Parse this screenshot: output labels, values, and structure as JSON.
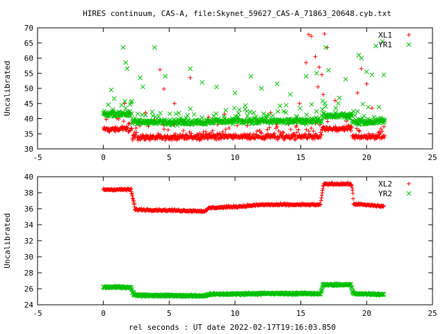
{
  "figure": {
    "title": "HIRES continuum, CAS-A, file:Skynet_59627_CAS-A_71863_20648.cyb.txt",
    "xlabel": "rel seconds : UT date 2022-02-17T19:16:03.850"
  },
  "chart_data": [
    {
      "type": "scatter",
      "ylabel": "Uncalibrated",
      "xlim": [
        -5,
        25
      ],
      "ylim": [
        30,
        70
      ],
      "xticks": [
        "-5",
        "0",
        "5",
        "10",
        "15",
        "20",
        "25"
      ],
      "yticks": [
        "30",
        "35",
        "40",
        "45",
        "50",
        "55",
        "60",
        "65",
        "70"
      ],
      "legend": "top-right",
      "series": [
        {
          "name": "XL1",
          "marker": "plus",
          "color": "#ff0000",
          "baseline_segments": [
            {
              "x0": 0.0,
              "x1": 2.2,
              "y": 36.5
            },
            {
              "x0": 2.2,
              "x1": 7.8,
              "y": 33.8
            },
            {
              "x0": 7.8,
              "x1": 16.6,
              "y": 34.0
            },
            {
              "x0": 16.6,
              "x1": 18.9,
              "y": 36.5
            },
            {
              "x0": 18.9,
              "x1": 21.4,
              "y": 34.0
            }
          ],
          "outliers": [
            [
              4.3,
              56.2
            ],
            [
              4.6,
              49.8
            ],
            [
              6.6,
              53.5
            ],
            [
              5.4,
              45.0
            ],
            [
              9.2,
              41.5
            ],
            [
              12.7,
              42.0
            ],
            [
              14.9,
              45.0
            ],
            [
              15.4,
              58.5
            ],
            [
              15.6,
              67.8
            ],
            [
              15.8,
              67.2
            ],
            [
              16.1,
              60.5
            ],
            [
              16.4,
              57.0
            ],
            [
              16.6,
              54.5
            ],
            [
              16.8,
              68.0
            ],
            [
              17.0,
              63.5
            ],
            [
              16.3,
              50.5
            ],
            [
              16.7,
              48.0
            ],
            [
              19.3,
              48.5
            ],
            [
              19.6,
              56.5
            ],
            [
              20.0,
              51.5
            ],
            [
              20.4,
              43.5
            ],
            [
              17.6,
              46.0
            ],
            [
              1.6,
              45.0
            ],
            [
              3.2,
              42.0
            ]
          ]
        },
        {
          "name": "YR1",
          "marker": "cross",
          "color": "#00c000",
          "baseline_segments": [
            {
              "x0": 0.0,
              "x1": 2.2,
              "y": 41.5
            },
            {
              "x0": 2.2,
              "x1": 7.8,
              "y": 38.8
            },
            {
              "x0": 7.8,
              "x1": 16.6,
              "y": 39.2
            },
            {
              "x0": 16.6,
              "x1": 18.9,
              "y": 40.8
            },
            {
              "x0": 18.9,
              "x1": 21.4,
              "y": 39.0
            }
          ],
          "outliers": [
            [
              1.5,
              63.5
            ],
            [
              1.7,
              58.5
            ],
            [
              1.8,
              56.5
            ],
            [
              3.9,
              63.5
            ],
            [
              2.8,
              53.5
            ],
            [
              4.7,
              54.0
            ],
            [
              6.6,
              56.5
            ],
            [
              7.5,
              52.0
            ],
            [
              11.2,
              54.0
            ],
            [
              12.0,
              50.0
            ],
            [
              13.2,
              51.5
            ],
            [
              15.4,
              54.0
            ],
            [
              16.2,
              55.0
            ],
            [
              16.9,
              63.5
            ],
            [
              17.1,
              56.0
            ],
            [
              18.4,
              53.0
            ],
            [
              19.4,
              61.0
            ],
            [
              19.6,
              60.0
            ],
            [
              20.0,
              55.5
            ],
            [
              20.4,
              54.5
            ],
            [
              20.7,
              64.0
            ],
            [
              21.2,
              65.5
            ],
            [
              21.3,
              54.5
            ],
            [
              0.6,
              49.5
            ],
            [
              3.0,
              50.5
            ],
            [
              8.6,
              50.5
            ],
            [
              10.0,
              48.5
            ],
            [
              14.2,
              48.0
            ]
          ]
        }
      ]
    },
    {
      "type": "scatter",
      "ylabel": "Uncalibrated",
      "xlim": [
        -5,
        25
      ],
      "ylim": [
        24,
        40
      ],
      "xticks": [
        "-5",
        "0",
        "5",
        "10",
        "15",
        "20",
        "25"
      ],
      "yticks": [
        "24",
        "26",
        "28",
        "30",
        "32",
        "34",
        "36",
        "38",
        "40"
      ],
      "legend": "top-right",
      "series": [
        {
          "name": "XL2",
          "marker": "plus",
          "color": "#ff0000",
          "points": [
            [
              0.0,
              38.4
            ],
            [
              2.1,
              38.4
            ],
            [
              2.15,
              38.0
            ],
            [
              2.2,
              37.6
            ],
            [
              2.25,
              37.2
            ],
            [
              2.3,
              36.9
            ],
            [
              2.35,
              36.5
            ],
            [
              2.4,
              35.9
            ],
            [
              7.8,
              35.7
            ],
            [
              8.0,
              36.1
            ],
            [
              10.5,
              36.3
            ],
            [
              12.0,
              36.5
            ],
            [
              14.0,
              36.5
            ],
            [
              16.5,
              36.5
            ],
            [
              16.6,
              37.7
            ],
            [
              16.65,
              38.2
            ],
            [
              16.7,
              38.9
            ],
            [
              16.8,
              39.1
            ],
            [
              18.8,
              39.1
            ],
            [
              18.9,
              38.6
            ],
            [
              18.95,
              37.9
            ],
            [
              19.0,
              36.6
            ],
            [
              21.3,
              36.3
            ]
          ]
        },
        {
          "name": "YR2",
          "marker": "cross",
          "color": "#00c000",
          "points": [
            [
              0.0,
              26.2
            ],
            [
              2.1,
              26.2
            ],
            [
              2.2,
              25.6
            ],
            [
              2.4,
              25.2
            ],
            [
              7.8,
              25.1
            ],
            [
              7.9,
              25.3
            ],
            [
              12.0,
              25.4
            ],
            [
              16.5,
              25.4
            ],
            [
              16.6,
              26.0
            ],
            [
              16.7,
              26.5
            ],
            [
              18.8,
              26.5
            ],
            [
              18.9,
              25.8
            ],
            [
              19.0,
              25.4
            ],
            [
              21.3,
              25.3
            ]
          ]
        }
      ]
    }
  ]
}
